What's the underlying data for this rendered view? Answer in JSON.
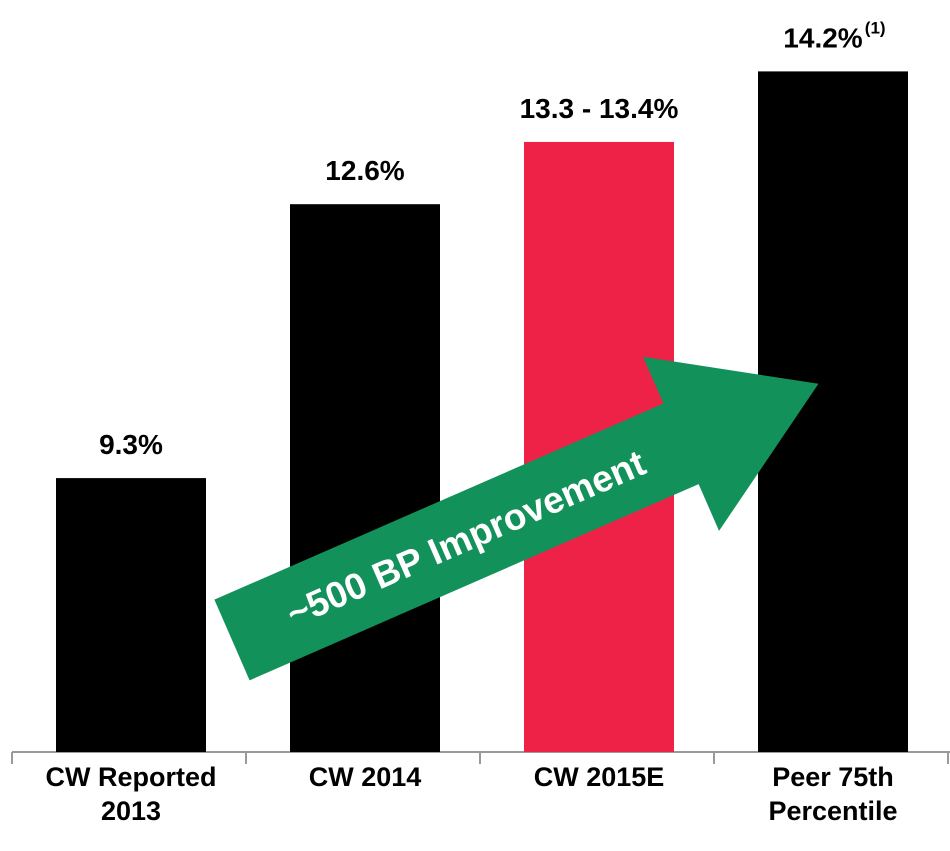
{
  "chart_data": {
    "type": "bar",
    "categories": [
      "CW Reported 2013",
      "CW 2014",
      "CW 2015E",
      "Peer 75th Percentile"
    ],
    "values": [
      9.3,
      12.6,
      13.35,
      14.2
    ],
    "value_labels": [
      "9.3%",
      "12.6%",
      "13.3 - 13.4%",
      "14.2%"
    ],
    "footnote_marker": "(1)",
    "colors": [
      "#000000",
      "#000000",
      "#ee2146",
      "#000000"
    ],
    "ylim": [
      6,
      15
    ],
    "annotation": "~500 BP Improvement",
    "annotation_color": "#13915a"
  }
}
